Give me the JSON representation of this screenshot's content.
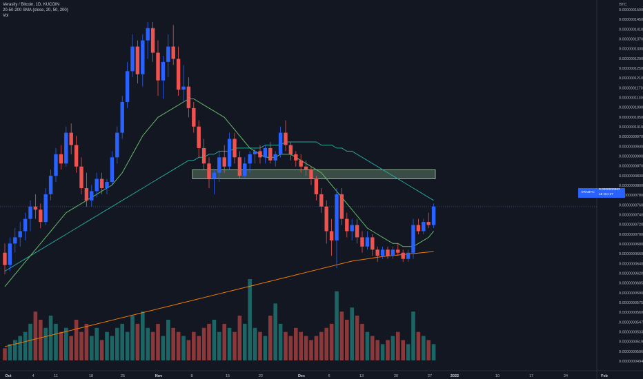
{
  "header": {
    "symbol_line": "Verasity / Bitcoin, 1D, KUCOIN",
    "sma_line": "20-50-200 SMA (close, 20, 50, 200)",
    "vol_line": "Vol"
  },
  "price_axis": {
    "currency": "BTC",
    "labels": [
      "0.0000001500",
      "0.0000001450",
      "0.0000001410",
      "0.0000001370",
      "0.0000001330",
      "0.0000001290",
      "0.0000001250",
      "0.0000001210",
      "0.0000001170",
      "0.0000001130",
      "0.0000001090",
      "0.0000001050",
      "0.0000001010",
      "0.0000000970",
      "0.0000000930",
      "0.0000000900",
      "0.0000000870",
      "0.0000000830",
      "0.0000000800",
      "0.0000000780",
      "0.0000000760",
      "0.0000000740",
      "0.0000000720",
      "0.0000000700",
      "0.0000000680",
      "0.0000000660",
      "0.0000000640",
      "0.0000000620",
      "0.0000000605",
      "0.0000000590",
      "0.0000000575",
      "0.0000000560",
      "0.0000000547",
      "0.0000000533",
      "0.0000000519",
      "0.0000000506",
      "0.0000000494"
    ],
    "current_symbol": "VRABTC",
    "current_price": "0.0000000862",
    "countdown": "19 Oct 27"
  },
  "time_axis": {
    "labels": [
      "Oct",
      "4",
      "11",
      "18",
      "25",
      "Nov",
      "8",
      "15",
      "22",
      "Dec",
      "6",
      "13",
      "20",
      "27",
      "2022",
      "10",
      "17",
      "24",
      "Feb"
    ]
  },
  "colors": {
    "background": "#131722",
    "up": "#2962ff",
    "down": "#ef5350",
    "sma20": "#66bb6a",
    "sma50": "#26a69a",
    "sma200": "#f57c00",
    "vol_up": "#26a69a",
    "vol_down": "#ef5350",
    "zone": "#a5d6a7"
  },
  "chart_data": {
    "type": "candlestick",
    "interval": "1D",
    "x_start": "2021-09-29",
    "note_y_units": "price in BTC x 1e-7",
    "ohlc": [
      [
        0.71,
        0.74,
        0.64,
        0.67
      ],
      [
        0.67,
        0.76,
        0.65,
        0.74
      ],
      [
        0.74,
        0.79,
        0.71,
        0.76
      ],
      [
        0.76,
        0.81,
        0.73,
        0.78
      ],
      [
        0.78,
        0.84,
        0.75,
        0.82
      ],
      [
        0.82,
        0.88,
        0.78,
        0.86
      ],
      [
        0.86,
        0.9,
        0.82,
        0.85
      ],
      [
        0.85,
        0.87,
        0.79,
        0.81
      ],
      [
        0.81,
        0.92,
        0.8,
        0.9
      ],
      [
        0.9,
        0.98,
        0.88,
        0.96
      ],
      [
        0.96,
        1.05,
        0.94,
        1.03
      ],
      [
        1.03,
        1.06,
        0.98,
        1.0
      ],
      [
        1.0,
        1.12,
        0.99,
        1.1
      ],
      [
        1.1,
        1.13,
        1.03,
        1.06
      ],
      [
        1.06,
        1.09,
        0.97,
        0.99
      ],
      [
        0.99,
        1.02,
        0.9,
        0.92
      ],
      [
        0.92,
        0.97,
        0.86,
        0.88
      ],
      [
        0.88,
        0.93,
        0.86,
        0.91
      ],
      [
        0.91,
        0.97,
        0.89,
        0.95
      ],
      [
        0.95,
        0.97,
        0.9,
        0.92
      ],
      [
        0.92,
        0.95,
        0.9,
        0.94
      ],
      [
        0.94,
        1.04,
        0.93,
        1.02
      ],
      [
        1.02,
        1.12,
        1.0,
        1.1
      ],
      [
        1.1,
        1.22,
        1.08,
        1.2
      ],
      [
        1.2,
        1.33,
        1.18,
        1.3
      ],
      [
        1.3,
        1.42,
        1.28,
        1.38
      ],
      [
        1.38,
        1.4,
        1.26,
        1.29
      ],
      [
        1.29,
        1.42,
        1.25,
        1.4
      ],
      [
        1.4,
        1.46,
        1.34,
        1.44
      ],
      [
        1.44,
        1.46,
        1.33,
        1.36
      ],
      [
        1.36,
        1.4,
        1.22,
        1.27
      ],
      [
        1.27,
        1.35,
        1.21,
        1.33
      ],
      [
        1.33,
        1.42,
        1.28,
        1.38
      ],
      [
        1.38,
        1.45,
        1.32,
        1.34
      ],
      [
        1.34,
        1.38,
        1.22,
        1.24
      ],
      [
        1.24,
        1.32,
        1.2,
        1.25
      ],
      [
        1.25,
        1.28,
        1.15,
        1.18
      ],
      [
        1.18,
        1.2,
        1.1,
        1.12
      ],
      [
        1.12,
        1.14,
        1.02,
        1.05
      ],
      [
        1.05,
        1.08,
        0.98,
        1.0
      ],
      [
        1.0,
        1.02,
        0.92,
        0.95
      ],
      [
        0.95,
        0.98,
        0.9,
        0.97
      ],
      [
        0.97,
        1.04,
        0.94,
        1.02
      ],
      [
        1.02,
        1.06,
        0.97,
        0.99
      ],
      [
        0.99,
        1.1,
        0.98,
        1.08
      ],
      [
        1.08,
        1.1,
        1.0,
        1.02
      ],
      [
        1.02,
        1.04,
        0.95,
        0.96
      ],
      [
        0.96,
        1.02,
        0.95,
        1.0
      ],
      [
        1.0,
        1.04,
        0.97,
        1.03
      ],
      [
        1.03,
        1.05,
        1.0,
        1.04
      ],
      [
        1.04,
        1.06,
        1.0,
        1.02
      ],
      [
        1.02,
        1.06,
        1.0,
        1.05
      ],
      [
        1.05,
        1.07,
        1.0,
        1.01
      ],
      [
        1.01,
        1.04,
        0.99,
        1.03
      ],
      [
        1.03,
        1.12,
        1.02,
        1.1
      ],
      [
        1.1,
        1.14,
        1.04,
        1.06
      ],
      [
        1.06,
        1.07,
        1.01,
        1.03
      ],
      [
        1.03,
        1.04,
        0.99,
        1.01
      ],
      [
        1.01,
        1.03,
        0.97,
        0.99
      ],
      [
        0.99,
        1.01,
        0.96,
        0.98
      ],
      [
        0.98,
        0.99,
        0.93,
        0.95
      ],
      [
        0.95,
        0.96,
        0.88,
        0.9
      ],
      [
        0.9,
        0.92,
        0.84,
        0.86
      ],
      [
        0.86,
        0.88,
        0.74,
        0.78
      ],
      [
        0.78,
        0.82,
        0.7,
        0.75
      ],
      [
        0.75,
        0.92,
        0.66,
        0.9
      ],
      [
        0.9,
        0.92,
        0.8,
        0.82
      ],
      [
        0.82,
        0.84,
        0.76,
        0.78
      ],
      [
        0.78,
        0.82,
        0.75,
        0.8
      ],
      [
        0.8,
        0.82,
        0.74,
        0.76
      ],
      [
        0.76,
        0.78,
        0.71,
        0.73
      ],
      [
        0.73,
        0.78,
        0.72,
        0.76
      ],
      [
        0.76,
        0.77,
        0.7,
        0.72
      ],
      [
        0.72,
        0.73,
        0.68,
        0.7
      ],
      [
        0.7,
        0.73,
        0.69,
        0.72
      ],
      [
        0.72,
        0.73,
        0.69,
        0.7
      ],
      [
        0.7,
        0.73,
        0.69,
        0.72
      ],
      [
        0.72,
        0.74,
        0.7,
        0.71
      ],
      [
        0.71,
        0.72,
        0.68,
        0.69
      ],
      [
        0.69,
        0.72,
        0.68,
        0.71
      ],
      [
        0.71,
        0.82,
        0.69,
        0.8
      ],
      [
        0.8,
        0.82,
        0.77,
        0.78
      ],
      [
        0.78,
        0.82,
        0.77,
        0.81
      ],
      [
        0.81,
        0.84,
        0.79,
        0.8
      ],
      [
        0.8,
        0.87,
        0.79,
        0.86
      ]
    ],
    "volume_relative": [
      0.15,
      0.2,
      0.25,
      0.3,
      0.35,
      0.45,
      0.6,
      0.5,
      0.4,
      0.55,
      0.45,
      0.35,
      0.4,
      0.3,
      0.5,
      0.35,
      0.45,
      0.3,
      0.4,
      0.25,
      0.35,
      0.3,
      0.4,
      0.45,
      0.35,
      0.55,
      0.45,
      0.6,
      0.4,
      0.35,
      0.45,
      0.3,
      0.5,
      0.4,
      0.35,
      0.3,
      0.25,
      0.35,
      0.3,
      0.4,
      0.45,
      0.5,
      0.35,
      0.45,
      0.4,
      0.35,
      0.55,
      0.45,
      1.0,
      0.4,
      0.35,
      0.3,
      0.55,
      0.7,
      0.45,
      0.35,
      0.3,
      0.4,
      0.35,
      0.3,
      0.25,
      0.3,
      0.35,
      0.4,
      0.45,
      0.85,
      0.6,
      0.5,
      0.65,
      0.55,
      0.45,
      0.35,
      0.3,
      0.25,
      0.2,
      0.25,
      0.3,
      0.35,
      0.25,
      0.2,
      0.6,
      0.35,
      0.3,
      0.25,
      0.2
    ],
    "sma20": [
      0.6,
      0.62,
      0.64,
      0.66,
      0.68,
      0.7,
      0.72,
      0.74,
      0.76,
      0.78,
      0.8,
      0.82,
      0.84,
      0.85,
      0.86,
      0.87,
      0.88,
      0.89,
      0.9,
      0.91,
      0.92,
      0.93,
      0.95,
      0.97,
      1.0,
      1.03,
      1.06,
      1.09,
      1.11,
      1.13,
      1.15,
      1.16,
      1.17,
      1.18,
      1.19,
      1.2,
      1.21,
      1.21,
      1.2,
      1.19,
      1.18,
      1.17,
      1.16,
      1.15,
      1.13,
      1.11,
      1.09,
      1.07,
      1.05,
      1.04,
      1.03,
      1.02,
      1.02,
      1.02,
      1.03,
      1.03,
      1.03,
      1.02,
      1.01,
      1.0,
      0.99,
      0.98,
      0.97,
      0.95,
      0.93,
      0.91,
      0.89,
      0.87,
      0.85,
      0.83,
      0.81,
      0.79,
      0.78,
      0.77,
      0.76,
      0.75,
      0.74,
      0.74,
      0.73,
      0.73,
      0.73,
      0.74,
      0.75,
      0.76,
      0.78
    ],
    "sma50": [
      0.65,
      0.66,
      0.67,
      0.68,
      0.69,
      0.7,
      0.71,
      0.72,
      0.73,
      0.74,
      0.75,
      0.76,
      0.77,
      0.78,
      0.79,
      0.8,
      0.81,
      0.82,
      0.83,
      0.84,
      0.85,
      0.86,
      0.87,
      0.88,
      0.89,
      0.9,
      0.91,
      0.92,
      0.93,
      0.94,
      0.95,
      0.96,
      0.97,
      0.98,
      0.99,
      1.0,
      1.01,
      1.01,
      1.02,
      1.02,
      1.03,
      1.03,
      1.04,
      1.04,
      1.04,
      1.05,
      1.05,
      1.05,
      1.05,
      1.05,
      1.05,
      1.06,
      1.06,
      1.06,
      1.06,
      1.07,
      1.07,
      1.07,
      1.07,
      1.07,
      1.07,
      1.07,
      1.06,
      1.06,
      1.06,
      1.05,
      1.05,
      1.04,
      1.04,
      1.03,
      1.02,
      1.01,
      1.0,
      0.99,
      0.98,
      0.97,
      0.96,
      0.95,
      0.94,
      0.93,
      0.92,
      0.91,
      0.9,
      0.89,
      0.88
    ],
    "sma200": [
      0.34,
      0.345,
      0.35,
      0.355,
      0.36,
      0.365,
      0.37,
      0.375,
      0.38,
      0.385,
      0.39,
      0.395,
      0.4,
      0.405,
      0.41,
      0.415,
      0.42,
      0.425,
      0.43,
      0.435,
      0.44,
      0.445,
      0.45,
      0.455,
      0.46,
      0.465,
      0.47,
      0.475,
      0.48,
      0.485,
      0.49,
      0.495,
      0.5,
      0.505,
      0.51,
      0.515,
      0.52,
      0.525,
      0.53,
      0.535,
      0.54,
      0.545,
      0.55,
      0.555,
      0.56,
      0.565,
      0.57,
      0.575,
      0.58,
      0.585,
      0.59,
      0.595,
      0.6,
      0.605,
      0.61,
      0.615,
      0.62,
      0.625,
      0.63,
      0.635,
      0.64,
      0.645,
      0.65,
      0.655,
      0.66,
      0.665,
      0.67,
      0.675,
      0.68,
      0.683,
      0.686,
      0.689,
      0.692,
      0.695,
      0.698,
      0.7,
      0.702,
      0.704,
      0.706,
      0.708,
      0.71,
      0.712,
      0.714,
      0.716,
      0.718
    ],
    "zone": [
      0.95,
      0.98
    ]
  }
}
